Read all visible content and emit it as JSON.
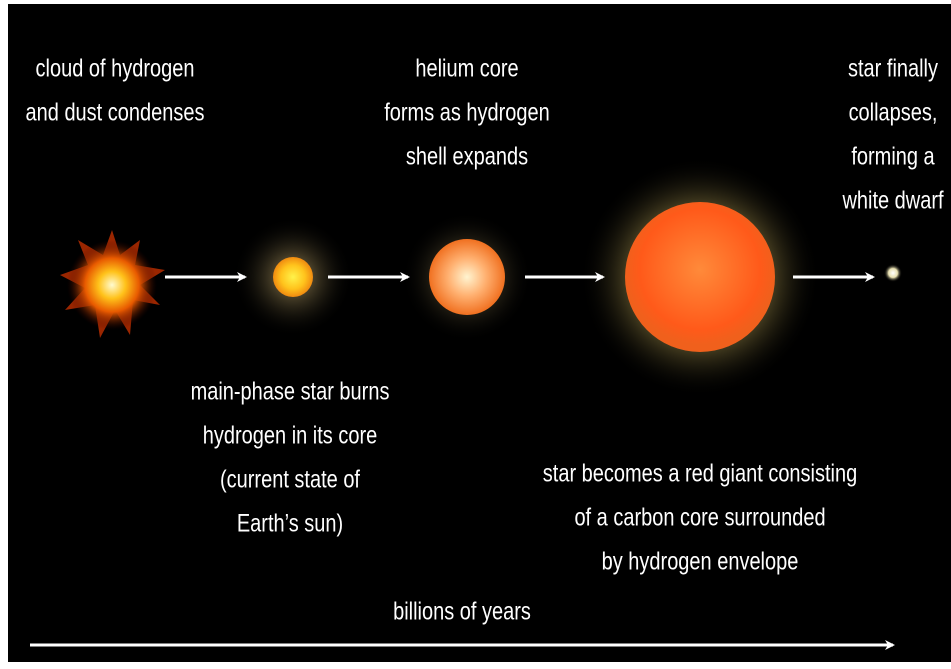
{
  "stages": [
    {
      "label": [
        "cloud of hydrogen",
        "and dust condenses"
      ]
    },
    {
      "label": [
        "main-phase star burns",
        "hydrogen in its core",
        "(current state of",
        "Earth’s sun)"
      ]
    },
    {
      "label": [
        "helium core",
        "forms as hydrogen",
        "shell expands"
      ]
    },
    {
      "label": [
        "star becomes a red giant consisting",
        "of a carbon core surrounded",
        "by hydrogen envelope"
      ]
    },
    {
      "label": [
        "star finally",
        "collapses,",
        "forming a",
        "white dwarf"
      ]
    }
  ],
  "timeline": {
    "label": "billions of years"
  }
}
